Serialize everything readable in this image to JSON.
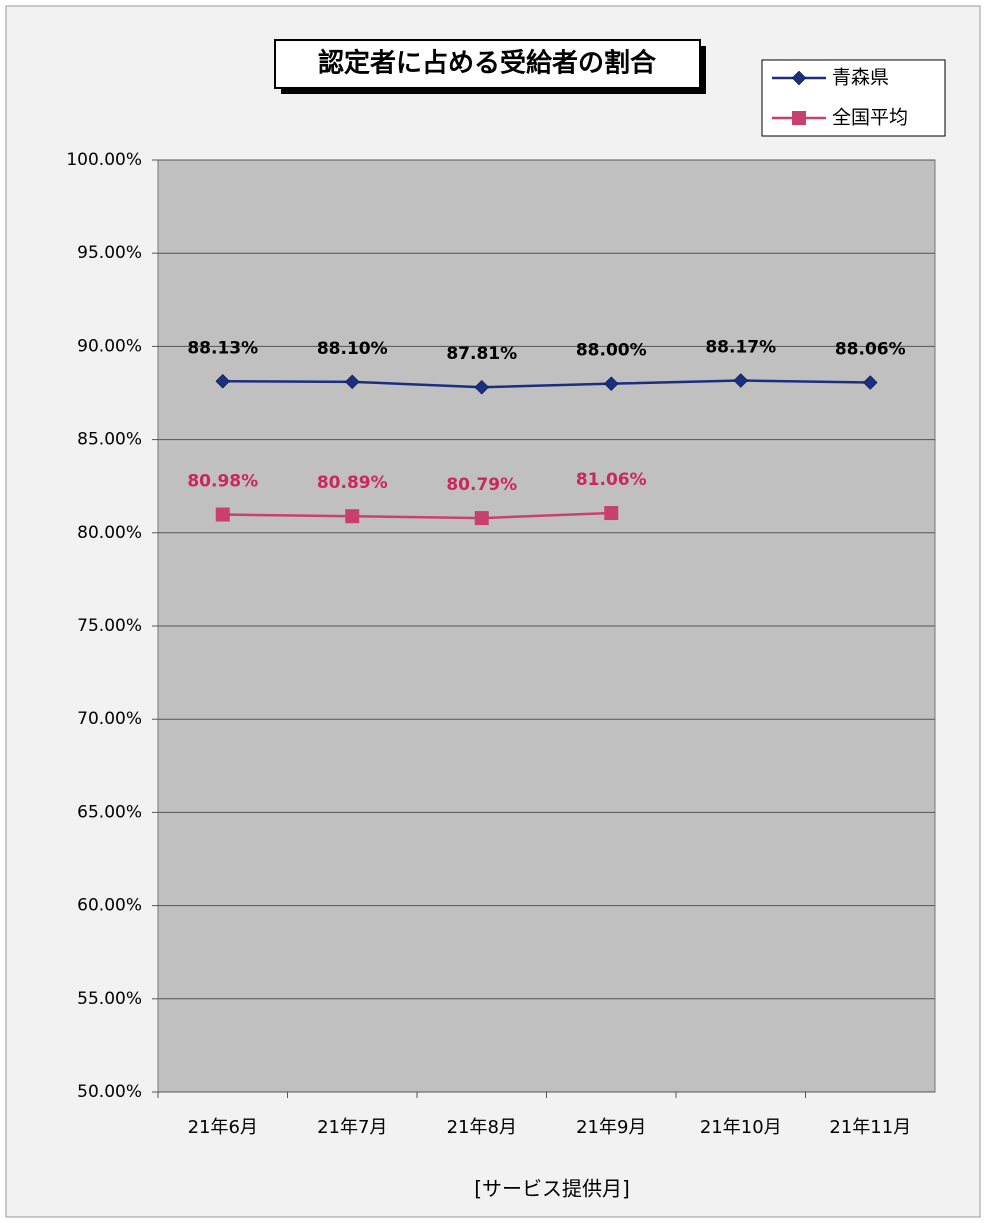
{
  "chart_data": {
    "type": "line",
    "title": "認定者に占める受給者の割合",
    "x_label": "[サービス提供月]",
    "categories": [
      "21年6月",
      "21年7月",
      "21年8月",
      "21年9月",
      "21年10月",
      "21年11月"
    ],
    "series": [
      {
        "name": "青森県",
        "color": "#1a2f80",
        "marker": "diamond",
        "label_color": "#000000",
        "values": [
          88.13,
          88.1,
          87.81,
          88.0,
          88.17,
          88.06
        ],
        "value_labels": [
          "88.13%",
          "88.10%",
          "87.81%",
          "88.00%",
          "88.17%",
          "88.06%"
        ]
      },
      {
        "name": "全国平均",
        "color": "#c8406e",
        "marker": "square",
        "label_color": "#c8285a",
        "values": [
          80.98,
          80.89,
          80.79,
          81.06,
          null,
          null
        ],
        "value_labels": [
          "80.98%",
          "80.89%",
          "80.79%",
          "81.06%",
          null,
          null
        ]
      }
    ],
    "ylim": [
      50,
      100
    ],
    "yticks": [
      {
        "value": 50,
        "label": "50.00%"
      },
      {
        "value": 55,
        "label": "55.00%"
      },
      {
        "value": 60,
        "label": "60.00%"
      },
      {
        "value": 65,
        "label": "65.00%"
      },
      {
        "value": 70,
        "label": "70.00%"
      },
      {
        "value": 75,
        "label": "75.00%"
      },
      {
        "value": 80,
        "label": "80.00%"
      },
      {
        "value": 85,
        "label": "85.00%"
      },
      {
        "value": 90,
        "label": "90.00%"
      },
      {
        "value": 95,
        "label": "95.00%"
      },
      {
        "value": 100,
        "label": "100.00%"
      }
    ],
    "grid": true,
    "legend": "top-right"
  }
}
